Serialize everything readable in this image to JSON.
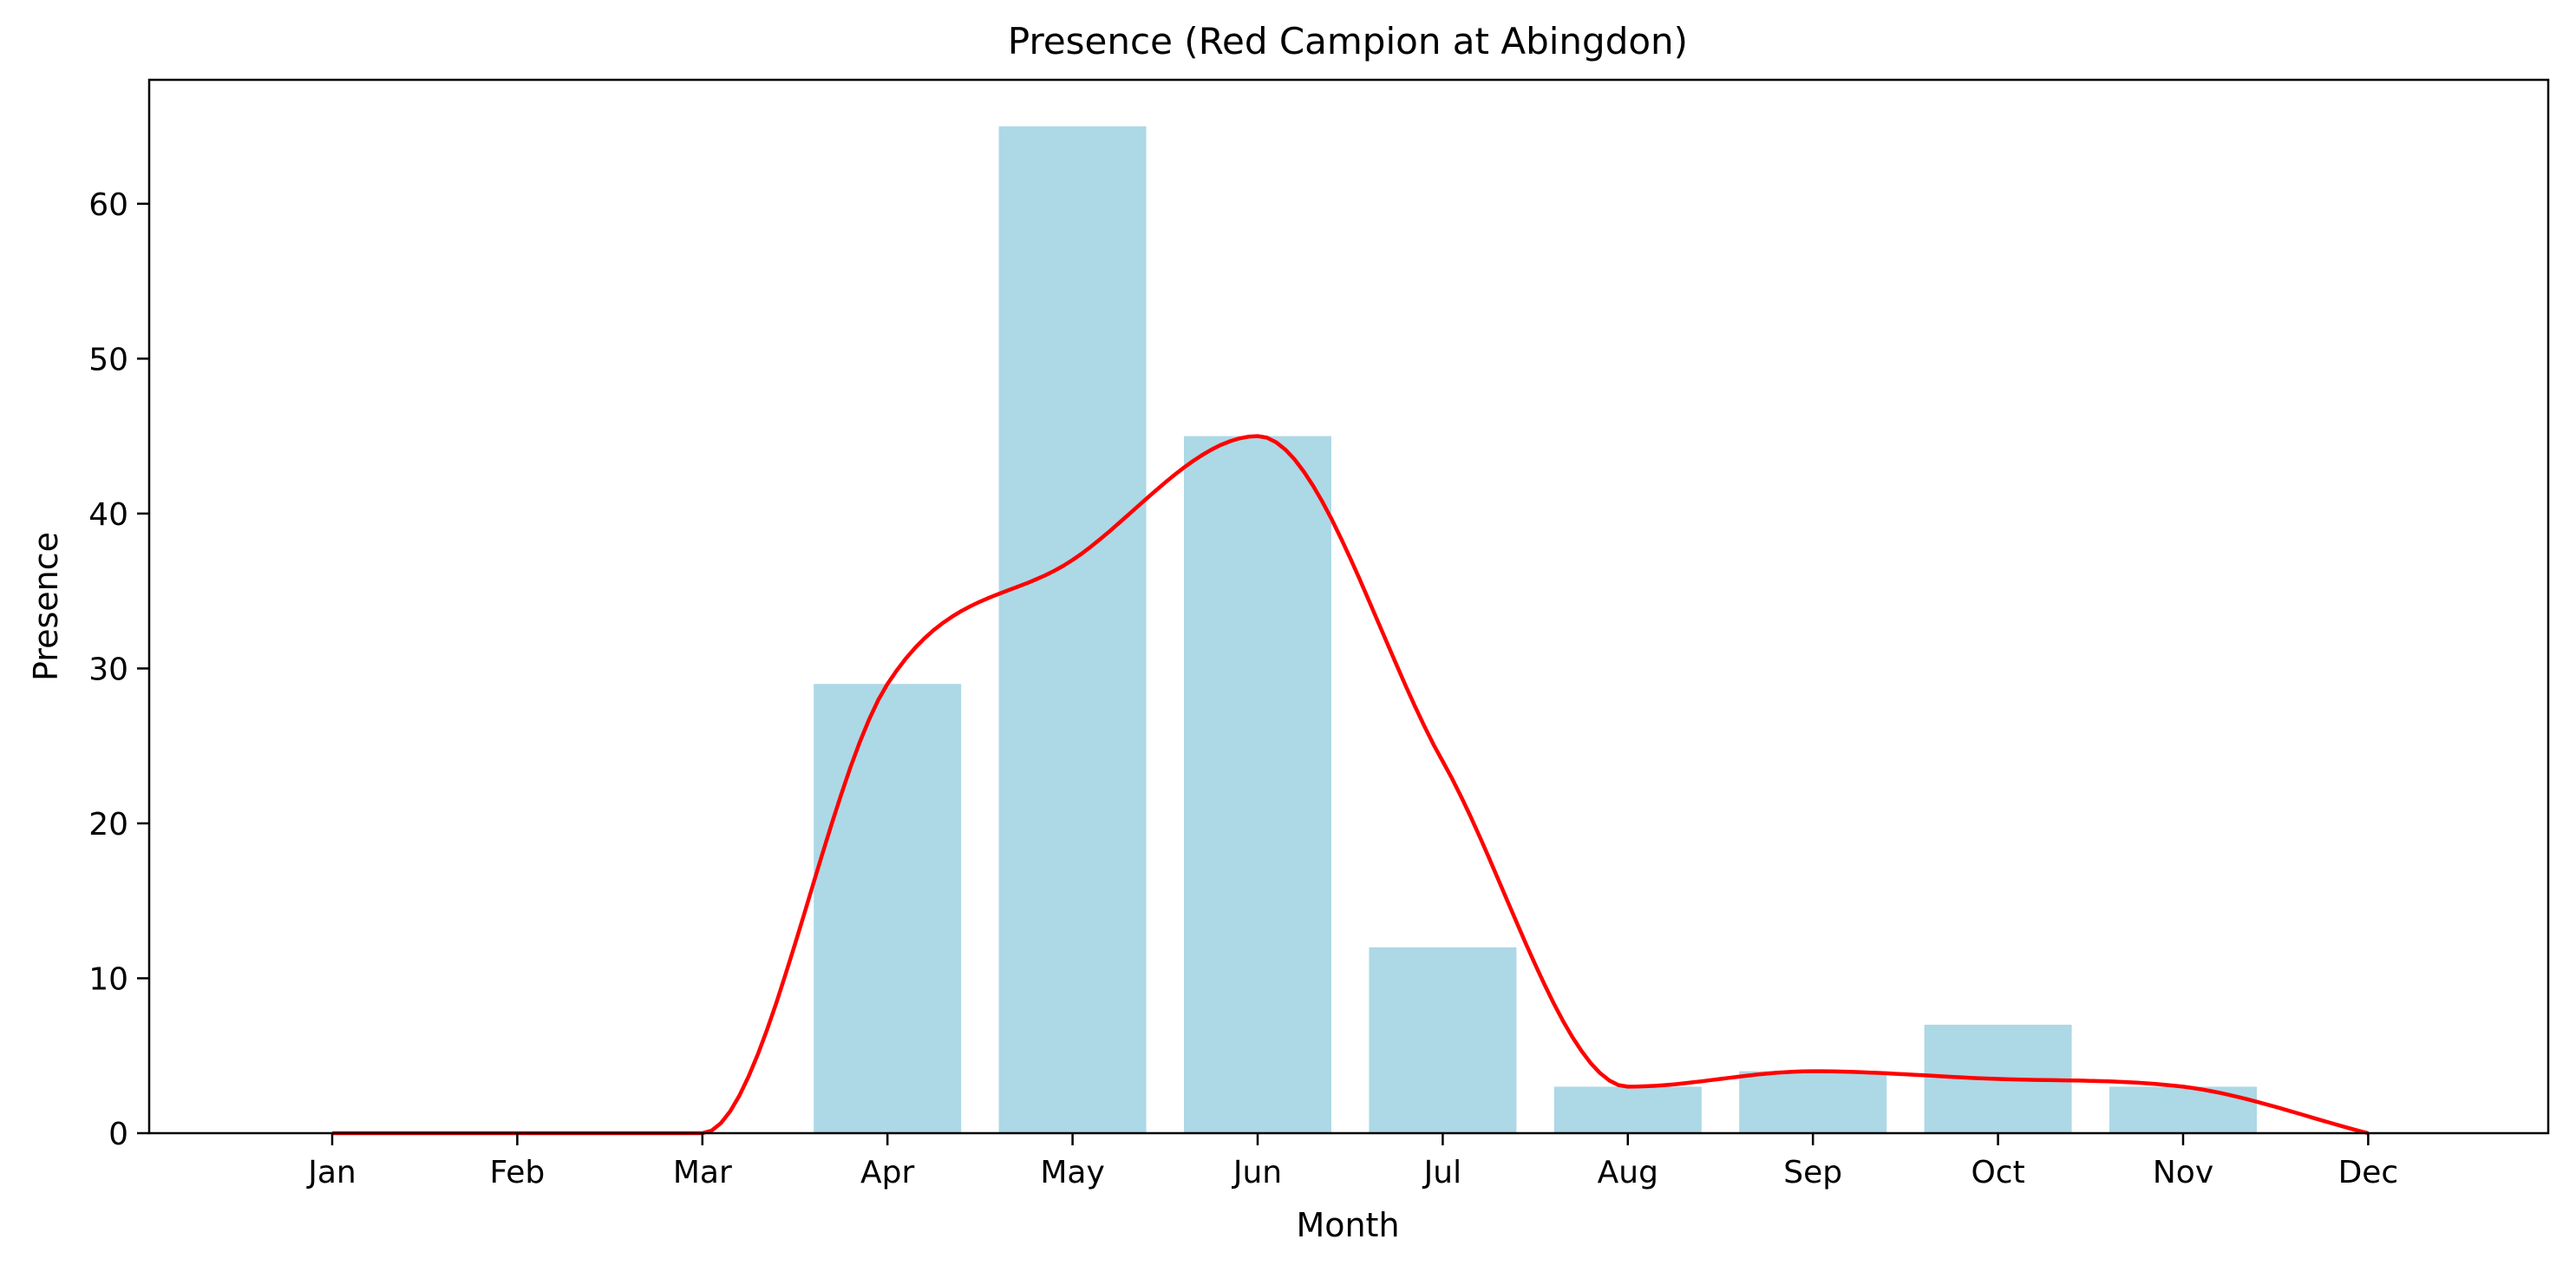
{
  "chart_data": {
    "type": "bar",
    "title": "Presence (Red Campion at Abingdon)",
    "xlabel": "Month",
    "ylabel": "Presence",
    "categories": [
      "Jan",
      "Feb",
      "Mar",
      "Apr",
      "May",
      "Jun",
      "Jul",
      "Aug",
      "Sep",
      "Oct",
      "Nov",
      "Dec"
    ],
    "series": [
      {
        "type": "bar",
        "values": [
          0,
          0,
          0,
          29,
          65,
          45,
          12,
          3,
          4,
          7,
          3,
          0
        ]
      },
      {
        "type": "line",
        "values": [
          0,
          0,
          0,
          29,
          37,
          45,
          24,
          3,
          4,
          3.5,
          3,
          0
        ]
      }
    ],
    "ylim": [
      0,
      68
    ],
    "yticks": [
      0,
      10,
      20,
      30,
      40,
      50,
      60
    ],
    "grid": false,
    "legend": "none",
    "colors": {
      "bar": "#add8e6",
      "line": "#ff0000",
      "axes": "#000000"
    }
  }
}
